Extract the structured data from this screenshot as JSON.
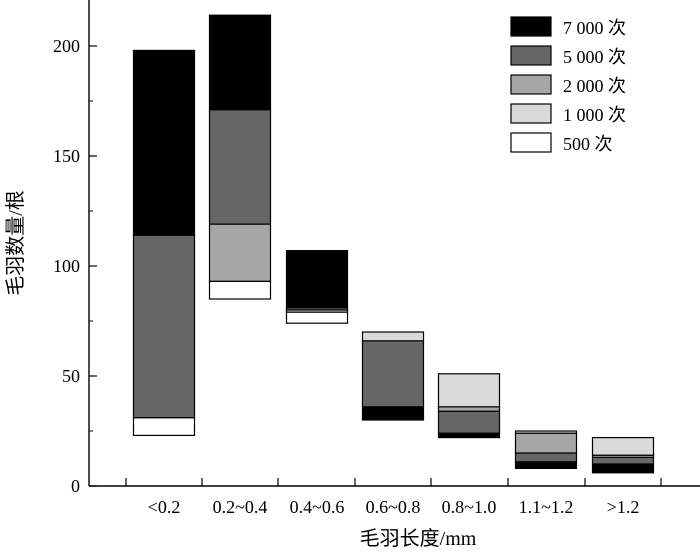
{
  "chart_data": {
    "type": "bar",
    "categories": [
      "<0.2",
      "0.2~0.4",
      "0.4~0.6",
      "0.6~0.8",
      "0.8~1.0",
      "1.1~1.2",
      ">1.2"
    ],
    "xlabel": "毛羽长度/mm",
    "ylabel": "毛羽数量/根",
    "ylim": [
      0,
      220
    ],
    "yticks": [
      "0",
      "50",
      "100",
      "150",
      "200"
    ],
    "ytick_values": [
      0,
      50,
      100,
      150,
      200
    ],
    "legend": [
      "7 000 次",
      "5 000 次",
      "2 000 次",
      "1 000 次",
      "500 次"
    ],
    "legend_position": "top-right",
    "grid": false,
    "note": "",
    "series": [
      {
        "name": "7 000 次",
        "color": "#000000",
        "ranges": [
          [
            114,
            198
          ],
          [
            171,
            214
          ],
          [
            81,
            107
          ],
          [
            30,
            36
          ],
          [
            22,
            24
          ],
          [
            8,
            11
          ],
          [
            6,
            10
          ]
        ]
      },
      {
        "name": "5 000 次",
        "color": "#666666",
        "ranges": [
          [
            31,
            114
          ],
          [
            119,
            171
          ],
          [
            80,
            81
          ],
          [
            36,
            66
          ],
          [
            24,
            34
          ],
          [
            11,
            15
          ],
          [
            10,
            13
          ]
        ]
      },
      {
        "name": "2 000 次",
        "color": "#a6a6a6",
        "ranges": [
          [
            31,
            31
          ],
          [
            93,
            119
          ],
          [
            80,
            80
          ],
          [
            66,
            66
          ],
          [
            34,
            36
          ],
          [
            15,
            24
          ],
          [
            13,
            14
          ]
        ]
      },
      {
        "name": "1 000 次",
        "color": "#d9d9d9",
        "ranges": [
          [
            31,
            31
          ],
          [
            93,
            93
          ],
          [
            79,
            80
          ],
          [
            66,
            70
          ],
          [
            36,
            51
          ],
          [
            24,
            25
          ],
          [
            14,
            22
          ]
        ]
      },
      {
        "name": "500 次",
        "color": "#ffffff",
        "ranges": [
          [
            23,
            31
          ],
          [
            85,
            93
          ],
          [
            74,
            79
          ],
          [
            30,
            30
          ],
          [
            22,
            22
          ],
          [
            8,
            8
          ],
          [
            6,
            6
          ]
        ]
      }
    ]
  }
}
